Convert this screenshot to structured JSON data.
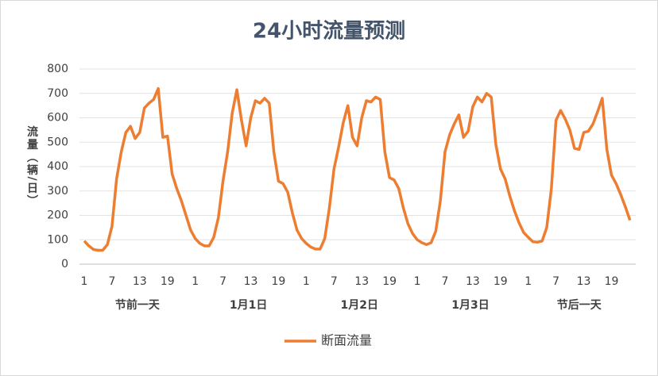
{
  "chart_data": {
    "type": "line",
    "title": "24小时流量预测",
    "y_label": "流量（辆/日）",
    "categories": [
      "1",
      null,
      null,
      null,
      null,
      null,
      "7",
      null,
      null,
      null,
      null,
      null,
      "13",
      null,
      null,
      null,
      null,
      null,
      "19",
      null,
      null,
      null,
      null,
      null,
      "1",
      null,
      null,
      null,
      null,
      null,
      "7",
      null,
      null,
      null,
      null,
      null,
      "13",
      null,
      null,
      null,
      null,
      null,
      "19",
      null,
      null,
      null,
      null,
      null,
      "1",
      null,
      null,
      null,
      null,
      null,
      "7",
      null,
      null,
      null,
      null,
      null,
      "13",
      null,
      null,
      null,
      null,
      null,
      "19",
      null,
      null,
      null,
      null,
      null,
      "1",
      null,
      null,
      null,
      null,
      null,
      "7",
      null,
      null,
      null,
      null,
      null,
      "13",
      null,
      null,
      null,
      null,
      null,
      "19",
      null,
      null,
      null,
      null,
      null,
      "1",
      null,
      null,
      null,
      null,
      null,
      "7",
      null,
      null,
      null,
      null,
      null,
      "13",
      null,
      null,
      null,
      null,
      null,
      "19",
      null,
      null,
      null,
      null
    ],
    "groups": [
      "节前一天",
      "1月1日",
      "1月2日",
      "1月3日",
      "节后一天"
    ],
    "series": [
      {
        "name": "断面流量",
        "color": "#ED7D31",
        "values": [
          95,
          75,
          60,
          57,
          57,
          80,
          155,
          350,
          460,
          540,
          565,
          515,
          540,
          640,
          660,
          675,
          720,
          520,
          525,
          370,
          310,
          260,
          200,
          140,
          105,
          85,
          75,
          75,
          110,
          190,
          340,
          460,
          620,
          715,
          590,
          485,
          600,
          670,
          660,
          680,
          660,
          460,
          340,
          330,
          295,
          210,
          140,
          105,
          85,
          70,
          62,
          62,
          105,
          230,
          390,
          480,
          580,
          650,
          520,
          485,
          600,
          670,
          665,
          685,
          675,
          460,
          355,
          345,
          310,
          230,
          165,
          125,
          100,
          88,
          80,
          88,
          135,
          260,
          460,
          530,
          575,
          612,
          520,
          545,
          645,
          685,
          665,
          700,
          685,
          490,
          390,
          350,
          280,
          220,
          170,
          130,
          110,
          92,
          90,
          95,
          150,
          310,
          590,
          630,
          595,
          550,
          475,
          470,
          540,
          545,
          575,
          625,
          680,
          470,
          365,
          330,
          285,
          235,
          180
        ]
      }
    ],
    "ylim": [
      0,
      800
    ],
    "yticks": [
      0,
      100,
      200,
      300,
      400,
      500,
      600,
      700,
      800
    ],
    "grid": true,
    "legend": "bottom"
  }
}
